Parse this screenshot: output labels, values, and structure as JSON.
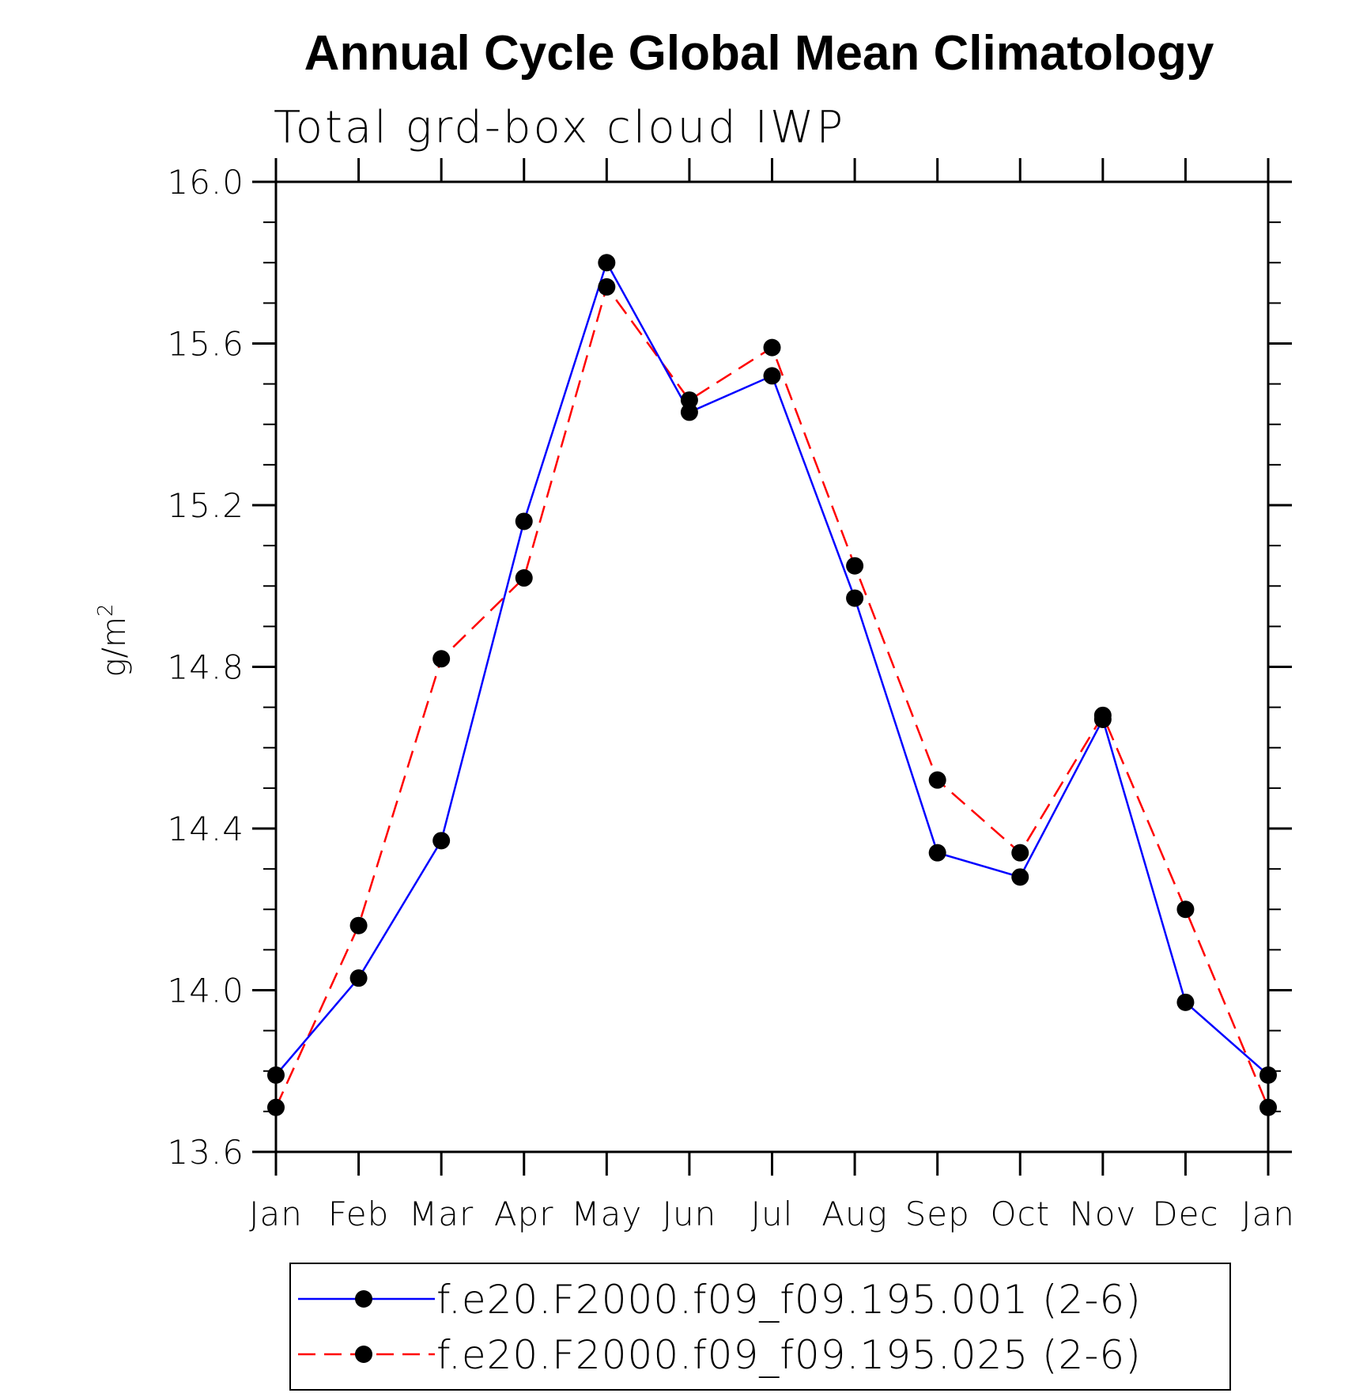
{
  "chart_data": {
    "type": "line",
    "title": "Annual Cycle Global Mean Climatology",
    "subtitle": "Total grd-box cloud IWP",
    "ylabel": "g/m",
    "ylabel_superscript": "2",
    "xlabel": "",
    "categories": [
      "Jan",
      "Feb",
      "Mar",
      "Apr",
      "May",
      "Jun",
      "Jul",
      "Aug",
      "Sep",
      "Oct",
      "Nov",
      "Dec",
      "Jan"
    ],
    "ylim": [
      13.6,
      16.0
    ],
    "yticks": [
      "13.6",
      "14.0",
      "14.4",
      "14.8",
      "15.2",
      "15.6",
      "16.0"
    ],
    "y_minor_step": 0.1,
    "grid": false,
    "legend_position": "bottom",
    "series": [
      {
        "name": "f.e20.F2000.f09_f09.195.001 (2-6)",
        "color": "#0000ff",
        "line_style": "solid",
        "marker": "filled-circle",
        "values": [
          13.79,
          14.03,
          14.37,
          15.16,
          15.8,
          15.43,
          15.52,
          14.97,
          14.34,
          14.28,
          14.67,
          13.97,
          13.79
        ]
      },
      {
        "name": "f.e20.F2000.f09_f09.195.025 (2-6)",
        "color": "#ff0000",
        "line_style": "dashed",
        "marker": "filled-circle",
        "values": [
          13.71,
          14.16,
          14.82,
          15.02,
          15.74,
          15.46,
          15.59,
          15.05,
          14.52,
          14.34,
          14.68,
          14.2,
          13.71
        ]
      }
    ]
  }
}
